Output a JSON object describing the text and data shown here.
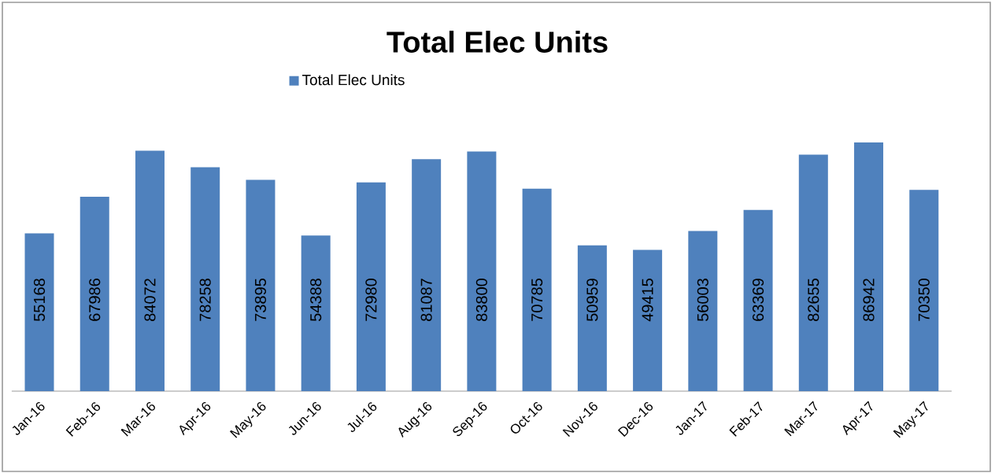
{
  "chart_data": {
    "type": "bar",
    "title": "Total Elec Units",
    "categories": [
      "Jan-16",
      "Feb-16",
      "Mar-16",
      "Apr-16",
      "May-16",
      "Jun-16",
      "Jul-16",
      "Aug-16",
      "Sep-16",
      "Oct-16",
      "Nov-16",
      "Dec-16",
      "Jan-17",
      "Feb-17",
      "Mar-17",
      "Apr-17",
      "May-17"
    ],
    "series": [
      {
        "name": "Total Elec Units",
        "color": "#4f81bd",
        "values": [
          55168,
          67986,
          84072,
          78258,
          73895,
          54388,
          72980,
          81087,
          83800,
          70785,
          50959,
          49415,
          56003,
          63369,
          82655,
          86942,
          70350
        ]
      }
    ],
    "data_labels": true,
    "legend": "top"
  }
}
